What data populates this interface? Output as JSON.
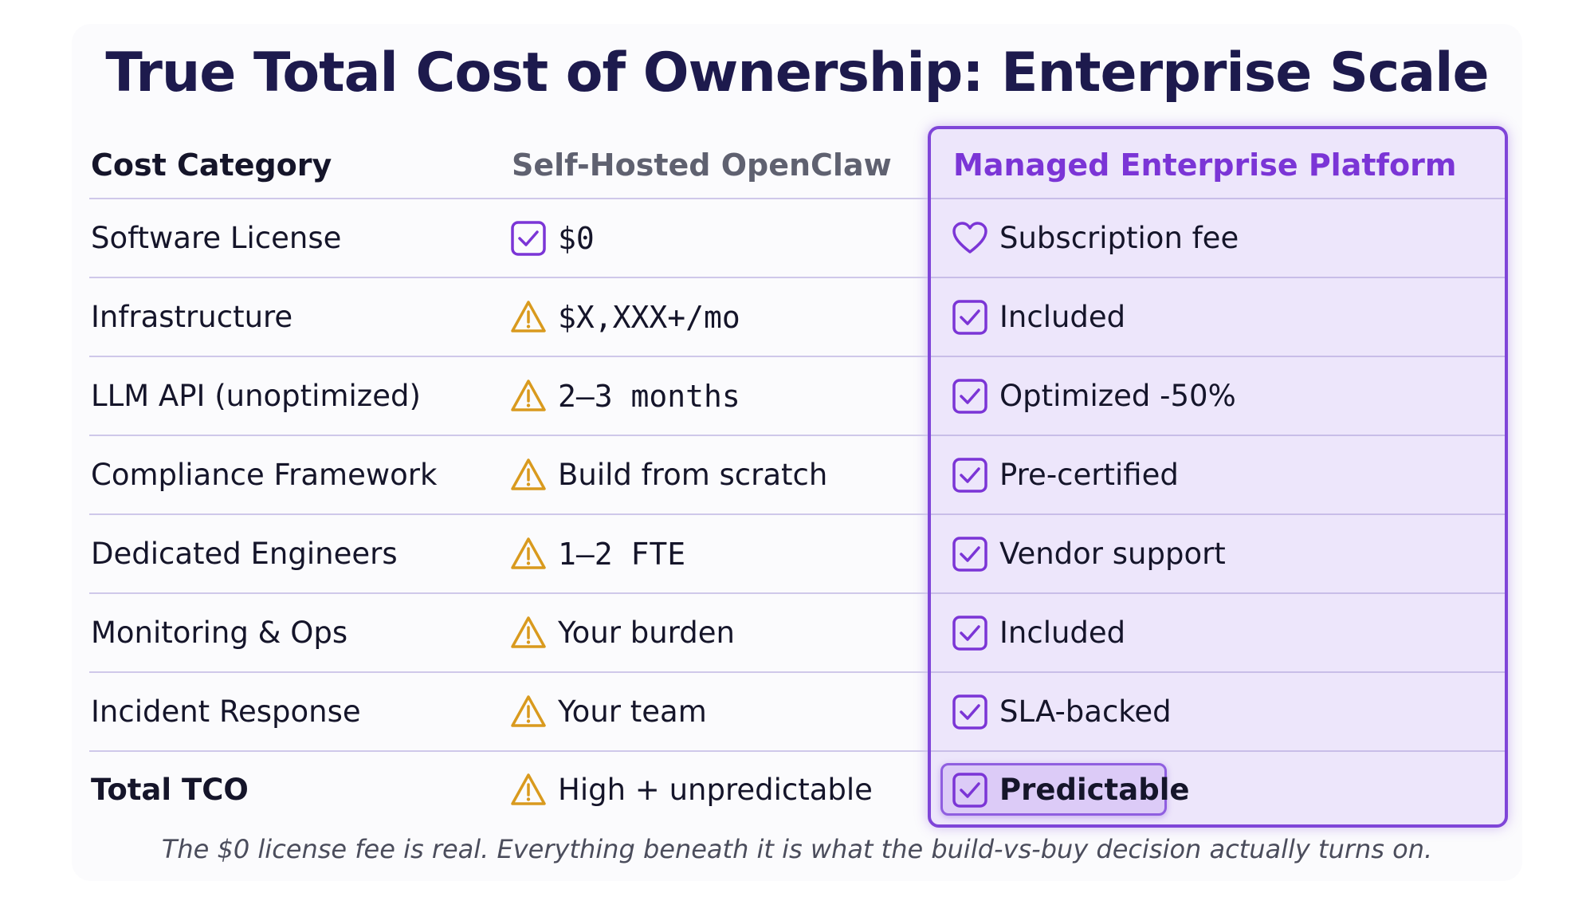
{
  "title": "True Total Cost of Ownership: Enterprise Scale",
  "headers": {
    "category": "Cost Category",
    "self_hosted": "Self-Hosted OpenClaw",
    "managed": "Managed Enterprise Platform"
  },
  "rows": [
    {
      "category": "Software License",
      "self_icon": "checkbox-icon",
      "self": "$0",
      "managed_icon": "heart-icon",
      "managed": "Subscription fee"
    },
    {
      "category": "Infrastructure",
      "self_icon": "warning-icon",
      "self": "$X,XXX+/mo",
      "managed_icon": "checkbox-icon",
      "managed": "Included"
    },
    {
      "category": "LLM API (unoptimized)",
      "self_icon": "warning-icon",
      "self": "2–3 months",
      "managed_icon": "checkbox-icon",
      "managed": "Optimized -50%"
    },
    {
      "category": "Compliance Framework",
      "self_icon": "warning-icon",
      "self": "Build from scratch",
      "managed_icon": "checkbox-icon",
      "managed": "Pre-certified"
    },
    {
      "category": "Dedicated Engineers",
      "self_icon": "warning-icon",
      "self": "1–2 FTE",
      "managed_icon": "checkbox-icon",
      "managed": "Vendor support"
    },
    {
      "category": "Monitoring & Ops",
      "self_icon": "warning-icon",
      "self": "Your burden",
      "managed_icon": "checkbox-icon",
      "managed": "Included"
    },
    {
      "category": "Incident Response",
      "self_icon": "warning-icon",
      "self": "Your team",
      "managed_icon": "checkbox-icon",
      "managed": "SLA-backed"
    },
    {
      "category": "Total TCO",
      "self_icon": "warning-icon",
      "self": "High + unpredictable",
      "managed_icon": "checkbox-icon",
      "managed": "Predictable"
    }
  ],
  "caption": "The $0 license fee is real. Everything beneath it is what the build-vs-buy decision actually turns on.",
  "colors": {
    "title": "#1d1a4d",
    "accent_purple": "#7b35d6",
    "warning_amber": "#d99a1e",
    "panel_bg": "#ede6fb"
  }
}
